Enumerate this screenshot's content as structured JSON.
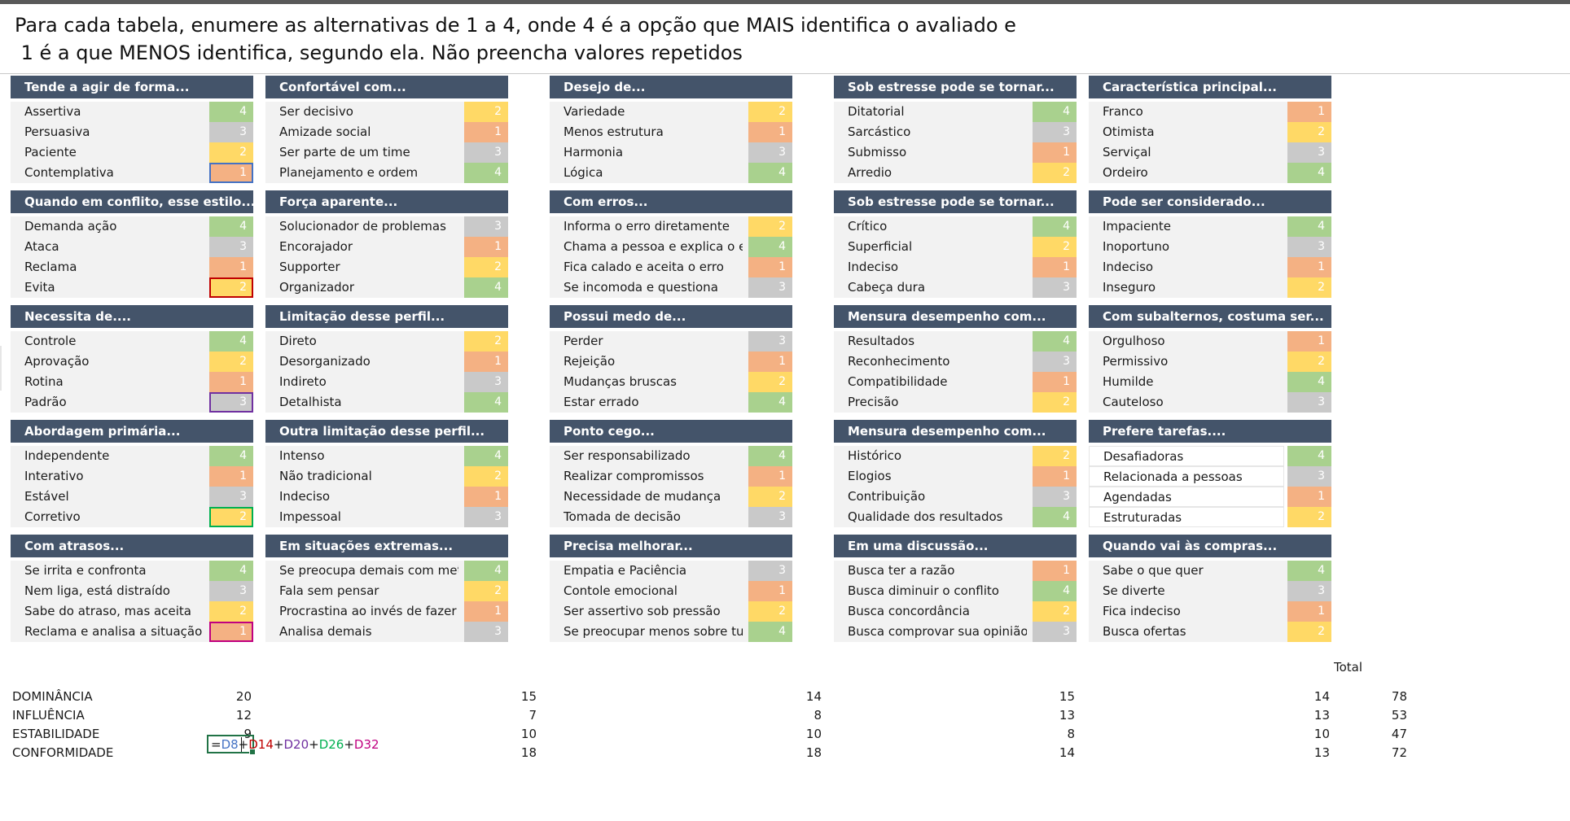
{
  "instructions": {
    "line1": "Para cada tabela, enumere as alternativas de 1 a 4, onde 4 é a opção que MAIS identifica o avaliado e",
    "line2": " 1 é a que MENOS identifica, segundo ela. Não preencha valores repetidos"
  },
  "colors": {
    "header_bg": "#44546a",
    "row_bg": "#f2f2f2",
    "value_4": "#a9d18e",
    "value_3": "#c9c9c9",
    "value_2": "#ffd966",
    "value_1": "#f4b183"
  },
  "blocks": [
    {
      "title": "Tende a agir de forma...",
      "items": [
        {
          "label": "Assertiva",
          "value": "4"
        },
        {
          "label": "Persuasiva",
          "value": "3"
        },
        {
          "label": "Paciente",
          "value": "2"
        },
        {
          "label": "Contemplativa",
          "value": "1"
        }
      ]
    },
    {
      "title": "Confortável com...",
      "items": [
        {
          "label": "Ser decisivo",
          "value": "2"
        },
        {
          "label": "Amizade social",
          "value": "1"
        },
        {
          "label": "Ser parte de um time",
          "value": "3"
        },
        {
          "label": "Planejamento e ordem",
          "value": "4"
        }
      ]
    },
    {
      "title": "Desejo de...",
      "items": [
        {
          "label": "Variedade",
          "value": "2"
        },
        {
          "label": "Menos estrutura",
          "value": "1"
        },
        {
          "label": "Harmonia",
          "value": "3"
        },
        {
          "label": "Lógica",
          "value": "4"
        }
      ]
    },
    {
      "title": "Sob estresse pode se tornar...",
      "items": [
        {
          "label": "Ditatorial",
          "value": "4"
        },
        {
          "label": "Sarcástico",
          "value": "3"
        },
        {
          "label": "Submisso",
          "value": "1"
        },
        {
          "label": "Arredio",
          "value": "2"
        }
      ]
    },
    {
      "title": "Característica principal...",
      "items": [
        {
          "label": "Franco",
          "value": "1"
        },
        {
          "label": "Otimista",
          "value": "2"
        },
        {
          "label": "Serviçal",
          "value": "3"
        },
        {
          "label": "Ordeiro",
          "value": "4"
        }
      ]
    },
    {
      "title": "Quando em conflito, esse estilo...",
      "items": [
        {
          "label": "Demanda ação",
          "value": "4"
        },
        {
          "label": "Ataca",
          "value": "3"
        },
        {
          "label": "Reclama",
          "value": "1"
        },
        {
          "label": "Evita",
          "value": "2"
        }
      ]
    },
    {
      "title": "Força aparente...",
      "items": [
        {
          "label": "Solucionador de problemas",
          "value": "3"
        },
        {
          "label": "Encorajador",
          "value": "1"
        },
        {
          "label": "Supporter",
          "value": "2"
        },
        {
          "label": "Organizador",
          "value": "4"
        }
      ]
    },
    {
      "title": "Com erros...",
      "items": [
        {
          "label": "Informa o erro diretamente",
          "value": "2"
        },
        {
          "label": "Chama a pessoa e explica o erro",
          "value": "4"
        },
        {
          "label": "Fica calado e aceita o erro",
          "value": "1"
        },
        {
          "label": "Se incomoda e questiona",
          "value": "3"
        }
      ]
    },
    {
      "title": "Sob estresse pode se tornar...",
      "items": [
        {
          "label": "Crítico",
          "value": "4"
        },
        {
          "label": "Superficial",
          "value": "2"
        },
        {
          "label": "Indeciso",
          "value": "1"
        },
        {
          "label": "Cabeça dura",
          "value": "3"
        }
      ]
    },
    {
      "title": "Pode ser considerado...",
      "items": [
        {
          "label": "Impaciente",
          "value": "4"
        },
        {
          "label": "Inoportuno",
          "value": "3"
        },
        {
          "label": "Indeciso",
          "value": "1"
        },
        {
          "label": "Inseguro",
          "value": "2"
        }
      ]
    },
    {
      "title": "Necessita de....",
      "items": [
        {
          "label": "Controle",
          "value": "4"
        },
        {
          "label": "Aprovação",
          "value": "2"
        },
        {
          "label": "Rotina",
          "value": "1"
        },
        {
          "label": "Padrão",
          "value": "3"
        }
      ]
    },
    {
      "title": "Limitação desse perfil...",
      "items": [
        {
          "label": "Direto",
          "value": "2"
        },
        {
          "label": "Desorganizado",
          "value": "1"
        },
        {
          "label": "Indireto",
          "value": "3"
        },
        {
          "label": "Detalhista",
          "value": "4"
        }
      ]
    },
    {
      "title": "Possui medo de...",
      "items": [
        {
          "label": "Perder",
          "value": "3"
        },
        {
          "label": "Rejeição",
          "value": "1"
        },
        {
          "label": "Mudanças bruscas",
          "value": "2"
        },
        {
          "label": "Estar errado",
          "value": "4"
        }
      ]
    },
    {
      "title": "Mensura desempenho com...",
      "items": [
        {
          "label": "Resultados",
          "value": "4"
        },
        {
          "label": "Reconhecimento",
          "value": "3"
        },
        {
          "label": "Compatibilidade",
          "value": "1"
        },
        {
          "label": "Precisão",
          "value": "2"
        }
      ]
    },
    {
      "title": "Com subalternos, costuma ser...",
      "items": [
        {
          "label": "Orgulhoso",
          "value": "1"
        },
        {
          "label": "Permissivo",
          "value": "2"
        },
        {
          "label": "Humilde",
          "value": "4"
        },
        {
          "label": "Cauteloso",
          "value": "3"
        }
      ]
    },
    {
      "title": "Abordagem primária...",
      "items": [
        {
          "label": "Independente",
          "value": "4"
        },
        {
          "label": "Interativo",
          "value": "1"
        },
        {
          "label": "Estável",
          "value": "3"
        },
        {
          "label": "Corretivo",
          "value": "2"
        }
      ]
    },
    {
      "title": "Outra limitação desse perfil...",
      "items": [
        {
          "label": "Intenso",
          "value": "4"
        },
        {
          "label": "Não tradicional",
          "value": "2"
        },
        {
          "label": "Indeciso",
          "value": "1"
        },
        {
          "label": "Impessoal",
          "value": "3"
        }
      ]
    },
    {
      "title": "Ponto cego...",
      "items": [
        {
          "label": "Ser responsabilizado",
          "value": "4"
        },
        {
          "label": "Realizar compromissos",
          "value": "1"
        },
        {
          "label": "Necessidade de mudança",
          "value": "2"
        },
        {
          "label": "Tomada de decisão",
          "value": "3"
        }
      ]
    },
    {
      "title": "Mensura desempenho com...",
      "items": [
        {
          "label": "Histórico",
          "value": "2"
        },
        {
          "label": "Elogios",
          "value": "1"
        },
        {
          "label": "Contribuição",
          "value": "3"
        },
        {
          "label": "Qualidade dos resultados",
          "value": "4"
        }
      ]
    },
    {
      "title": "Prefere tarefas....",
      "items": [
        {
          "label": "Desafiadoras",
          "value": "4"
        },
        {
          "label": "Relacionada a pessoas",
          "value": "3"
        },
        {
          "label": "Agendadas",
          "value": "1"
        },
        {
          "label": "Estruturadas",
          "value": "2"
        }
      ]
    },
    {
      "title": "Com atrasos...",
      "items": [
        {
          "label": "Se irrita e confronta",
          "value": "4"
        },
        {
          "label": "Nem liga, está distraído",
          "value": "3"
        },
        {
          "label": "Sabe do atraso, mas aceita",
          "value": "2"
        },
        {
          "label": "Reclama e analisa a situação",
          "value": "1"
        }
      ]
    },
    {
      "title": "Em situações extremas...",
      "items": [
        {
          "label": "Se preocupa demais com metas",
          "value": "4"
        },
        {
          "label": "Fala sem pensar",
          "value": "2"
        },
        {
          "label": "Procrastina ao invés de fazer",
          "value": "1"
        },
        {
          "label": "Analisa demais",
          "value": "3"
        }
      ]
    },
    {
      "title": "Precisa melhorar...",
      "items": [
        {
          "label": "Empatia e Paciência",
          "value": "3"
        },
        {
          "label": "Contole emocional",
          "value": "1"
        },
        {
          "label": "Ser assertivo sob pressão",
          "value": "2"
        },
        {
          "label": "Se preocupar menos sobre tudo",
          "value": "4"
        }
      ]
    },
    {
      "title": "Em uma discussão...",
      "items": [
        {
          "label": "Busca ter a razão",
          "value": "1"
        },
        {
          "label": "Busca diminuir o conflito",
          "value": "4"
        },
        {
          "label": "Busca concordância",
          "value": "2"
        },
        {
          "label": "Busca comprovar sua opinião",
          "value": "3"
        }
      ]
    },
    {
      "title": "Quando vai às compras...",
      "items": [
        {
          "label": "Sabe o que quer",
          "value": "4"
        },
        {
          "label": "Se diverte",
          "value": "3"
        },
        {
          "label": "Fica indeciso",
          "value": "1"
        },
        {
          "label": "Busca ofertas",
          "value": "2"
        }
      ]
    }
  ],
  "summary": {
    "total_header": "Total",
    "rows": [
      {
        "label": "DOMINÂNCIA",
        "values": [
          "20",
          "15",
          "14",
          "15",
          "14"
        ],
        "total": "78"
      },
      {
        "label": "INFLUÊNCIA",
        "values": [
          "12",
          "7",
          "8",
          "13",
          "13"
        ],
        "total": "53"
      },
      {
        "label": "ESTABILIDADE",
        "values": [
          "9",
          "10",
          "10",
          "8",
          "10"
        ],
        "total": "47"
      },
      {
        "label": "CONFORMIDADE",
        "values": [
          "",
          "18",
          "18",
          "14",
          "13"
        ],
        "total": "72"
      }
    ]
  },
  "formula": {
    "eq": "=",
    "ref1": "D8",
    "ref2": "D14",
    "ref3": "D20",
    "ref4": "D26",
    "ref5": "D32",
    "plus": "+"
  }
}
